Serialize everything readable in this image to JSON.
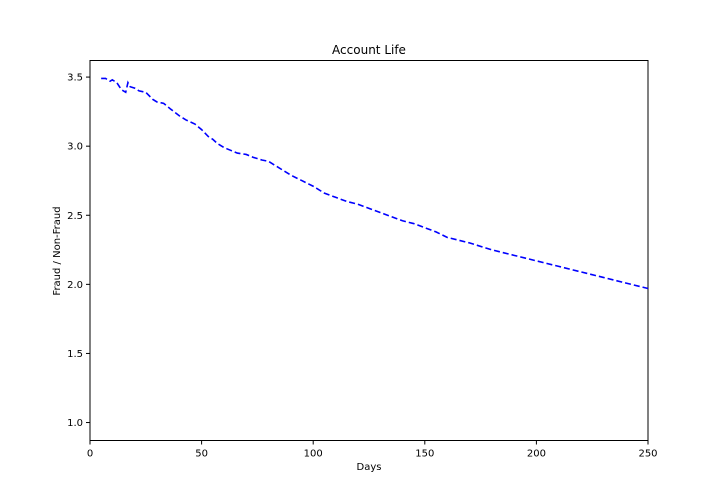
{
  "chart_data": {
    "type": "line",
    "title": "Account Life",
    "xlabel": "Days",
    "ylabel": "Fraud / Non-Fraud",
    "xlim": [
      0,
      250
    ],
    "ylim": [
      0.87,
      3.62
    ],
    "xticks": [
      "0",
      "50",
      "100",
      "150",
      "200",
      "250"
    ],
    "yticks": [
      "1.0",
      "1.5",
      "2.0",
      "2.5",
      "3.0",
      "3.5"
    ],
    "grid": false,
    "series": [
      {
        "color": "#0000ff",
        "line_style": "dashed",
        "x": [
          5,
          7,
          9,
          10,
          12,
          14,
          16,
          17,
          18,
          20,
          22,
          25,
          28,
          30,
          33,
          36,
          40,
          43,
          47,
          50,
          53,
          55,
          57,
          60,
          63,
          66,
          70,
          73,
          77,
          80,
          83,
          86,
          90,
          95,
          100,
          105,
          110,
          115,
          120,
          125,
          130,
          135,
          140,
          145,
          150,
          155,
          160,
          170,
          180,
          190,
          200,
          210,
          220,
          230,
          240,
          250
        ],
        "y": [
          3.49,
          3.49,
          3.47,
          3.48,
          3.46,
          3.41,
          3.39,
          3.46,
          3.43,
          3.42,
          3.4,
          3.39,
          3.34,
          3.32,
          3.31,
          3.27,
          3.22,
          3.19,
          3.16,
          3.12,
          3.07,
          3.05,
          3.02,
          2.99,
          2.97,
          2.95,
          2.94,
          2.92,
          2.9,
          2.89,
          2.86,
          2.83,
          2.79,
          2.75,
          2.71,
          2.66,
          2.63,
          2.6,
          2.58,
          2.55,
          2.52,
          2.49,
          2.46,
          2.44,
          2.41,
          2.38,
          2.34,
          2.3,
          2.25,
          2.21,
          2.17,
          2.13,
          2.09,
          2.05,
          2.01,
          1.97
        ]
      }
    ]
  }
}
